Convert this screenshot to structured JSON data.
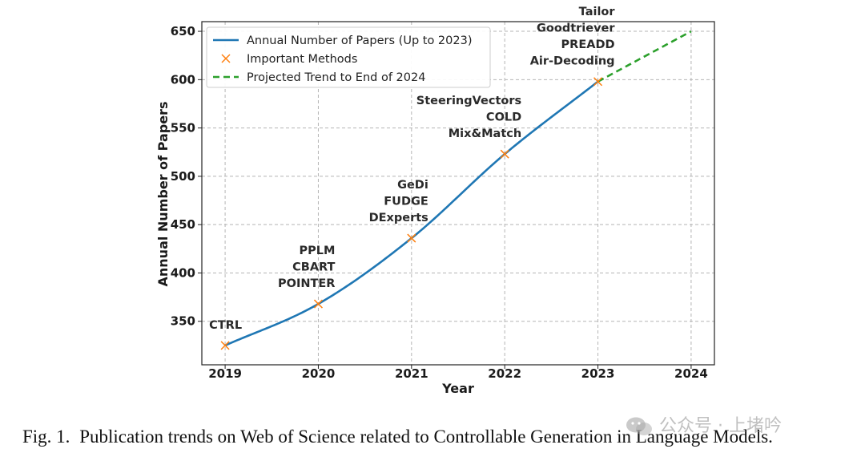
{
  "chart_data": {
    "type": "line",
    "xlabel": "Year",
    "ylabel": "Annual Number of Papers",
    "xlim": [
      2018.75,
      2024.25
    ],
    "ylim": [
      305,
      660
    ],
    "x_ticks": [
      2019,
      2020,
      2021,
      2022,
      2023,
      2024
    ],
    "y_ticks": [
      350,
      400,
      450,
      500,
      550,
      600,
      650
    ],
    "grid": true,
    "legend_position": "top-left",
    "series": [
      {
        "name": "Annual Number of Papers (Up to 2023)",
        "style": "solid",
        "color": "#1f77b4",
        "x": [
          2019,
          2020,
          2021,
          2022,
          2023
        ],
        "y": [
          325,
          368,
          436,
          523,
          598
        ]
      },
      {
        "name": "Important Methods",
        "style": "marker-x",
        "color": "#ff7f0e",
        "x": [
          2019,
          2020,
          2021,
          2022,
          2023
        ],
        "y": [
          325,
          368,
          436,
          523,
          598
        ]
      },
      {
        "name": "Projected Trend to End of 2024",
        "style": "dashed",
        "color": "#2ca02c",
        "x": [
          2023,
          2024
        ],
        "y": [
          598,
          650
        ]
      }
    ],
    "annotations": [
      {
        "year": 2019,
        "methods": [
          "CTRL"
        ]
      },
      {
        "year": 2020,
        "methods": [
          "PPLM",
          "CBART",
          "POINTER"
        ]
      },
      {
        "year": 2021,
        "methods": [
          "GeDi",
          "FUDGE",
          "DExperts"
        ]
      },
      {
        "year": 2022,
        "methods": [
          "SteeringVectors",
          "COLD",
          "Mix&Match"
        ]
      },
      {
        "year": 2023,
        "methods": [
          "Tailor",
          "Goodtriever",
          "PREADD",
          "Air-Decoding"
        ]
      }
    ]
  },
  "caption": {
    "label": "Fig. 1.",
    "text": "Publication trends on Web of Science related to Controllable Generation in Language Models."
  },
  "watermark": {
    "text": "公众号 · 上堵吟"
  }
}
